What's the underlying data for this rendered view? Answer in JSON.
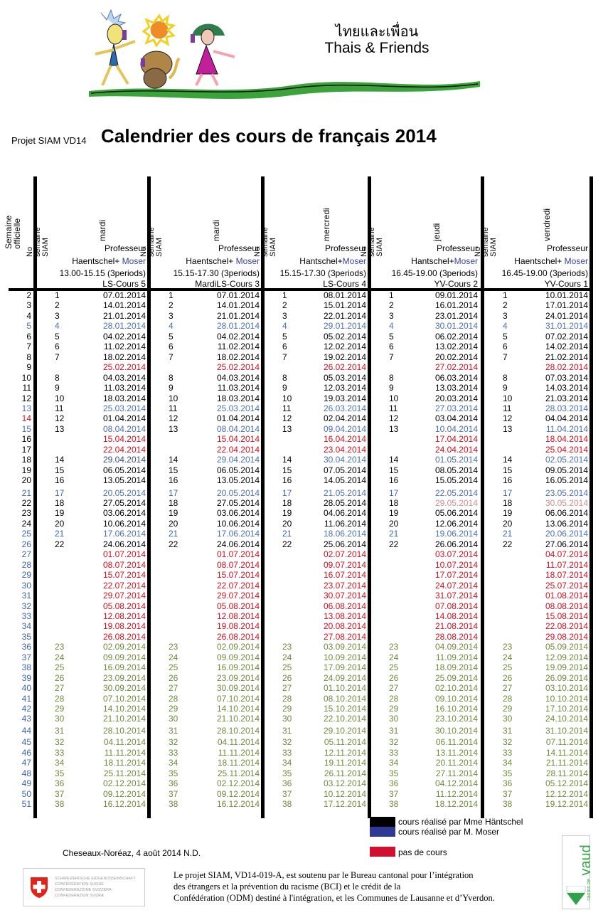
{
  "brand": {
    "thai": "ไทยและเพื่อน",
    "english": "Thais & Friends"
  },
  "header": {
    "project_label": "Projet SIAM VD14",
    "title": "Calendrier des cours de français 2014"
  },
  "table": {
    "week_header": "Semaine officielle",
    "siam_header": "No semaine SIAM",
    "columns": [
      {
        "day": "mardi",
        "role": "Professeur",
        "teacher_a": "Haentschel+",
        "teacher_b": "Moser",
        "time": "13.00-15.15 (3periods)",
        "course": "LS-Cours 5"
      },
      {
        "day": "mardi",
        "role": "Professeur",
        "teacher_a": "Haentschel+",
        "teacher_b": "Moser",
        "time": "15.15-17.30 (3periods)",
        "course": "MardiLS-Cours 3"
      },
      {
        "day": "mercredi",
        "role": "Professeur",
        "teacher_a": "Hantschel+",
        "teacher_b": "Moser",
        "time": "15.15-17.30 (3periods)",
        "course": "LS-Cours 4"
      },
      {
        "day": "jeudi",
        "role": "Professeur",
        "teacher_a": "Hantschel+",
        "teacher_b": "Moser",
        "time": "16.45-19.00 (3periods)",
        "course": "YV-Cours 2"
      },
      {
        "day": "vendredi",
        "role": "Professeur",
        "teacher_a": "Haentschel+",
        "teacher_b": "Moser",
        "time": "16.45-19.00 (3periods)",
        "course": "YV-Cours 1"
      }
    ],
    "rows": [
      {
        "week": "2",
        "wc": "black",
        "siam": "1",
        "c": "black",
        "dates": [
          "07.01.2014",
          "07.01.2014",
          "08.01.2014",
          "09.01.2014",
          "10.01.2014"
        ]
      },
      {
        "week": "3",
        "wc": "black",
        "siam": "2",
        "c": "black",
        "dates": [
          "14.01.2014",
          "14.01.2014",
          "15.01.2014",
          "16.01.2014",
          "17.01.2014"
        ]
      },
      {
        "week": "4",
        "wc": "black",
        "siam": "3",
        "c": "black",
        "dates": [
          "21.01.2014",
          "21.01.2014",
          "22.01.2014",
          "23.01.2014",
          "24.01.2014"
        ]
      },
      {
        "week": "5",
        "wc": "blue",
        "siam": "4",
        "c": "blue",
        "dates": [
          "28.01.2014",
          "28.01.2014",
          "29.01.2014",
          "30.01.2014",
          "31.01.2014"
        ]
      },
      {
        "week": "6",
        "wc": "black",
        "siam": "5",
        "c": "black",
        "dates": [
          "04.02.2014",
          "04.02.2014",
          "05.02.2014",
          "06.02.2014",
          "07.02.2014"
        ]
      },
      {
        "week": "7",
        "wc": "black",
        "siam": "6",
        "c": "black",
        "dates": [
          "11.02.2014",
          "11.02.2014",
          "12.02.2014",
          "13.02.2014",
          "14.02.2014"
        ]
      },
      {
        "week": "8",
        "wc": "black",
        "siam": "7",
        "c": "black",
        "dates": [
          "18.02.2014",
          "18.02.2014",
          "19.02.2014",
          "20.02.2014",
          "21.02.2014"
        ]
      },
      {
        "week": "9",
        "wc": "black",
        "siam": "",
        "c": "red",
        "dates": [
          "25.02.2014",
          "25.02.2014",
          "26.02.2014",
          "27.02.2014",
          "28.02.2014"
        ]
      },
      {
        "week": "10",
        "wc": "black",
        "siam": "8",
        "c": "black",
        "dates": [
          "04.03.2014",
          "04.03.2014",
          "05.03.2014",
          "06.03.2014",
          "07.03.2014"
        ]
      },
      {
        "week": "11",
        "wc": "black",
        "siam": "9",
        "c": "black",
        "dates": [
          "11.03.2014",
          "11.03.2014",
          "12.03.2014",
          "13.03.2014",
          "14.03.2014"
        ]
      },
      {
        "week": "12",
        "wc": "black",
        "siam": "10",
        "c": "black",
        "dates": [
          "18.03.2014",
          "18.03.2014",
          "19.03.2014",
          "20.03.2014",
          "21.03.2014"
        ]
      },
      {
        "week": "13",
        "wc": "blue",
        "siam": "11",
        "sc": "black",
        "c": "blue",
        "dates": [
          "25.03.2014",
          "25.03.2014",
          "26.03.2014",
          "27.03.2014",
          "28.03.2014"
        ]
      },
      {
        "week": "14",
        "wc": "red",
        "siam": "12",
        "c": "black",
        "dates": [
          "01.04.2014",
          "01.04.2014",
          "02.04.2014",
          "03.04.2014",
          "04.04.2014"
        ]
      },
      {
        "week": "15",
        "wc": "blue",
        "siam": "13",
        "sc": "black",
        "c": "blue",
        "dates": [
          "08.04.2014",
          "08.04.2014",
          "09.04.2014",
          "10.04.2014",
          "11.04.2014"
        ]
      },
      {
        "week": "16",
        "wc": "black",
        "siam": "",
        "c": "red",
        "dates": [
          "15.04.2014",
          "15.04.2014",
          "16.04.2014",
          "17.04.2014",
          "18.04.2014"
        ]
      },
      {
        "week": "17",
        "wc": "black",
        "siam": "",
        "c": "red",
        "dates": [
          "22.04.2014",
          "22.04.2014",
          "23.04.2014",
          "24.04.2014",
          "25.04.2014"
        ]
      },
      {
        "week": "18",
        "wc": "black",
        "siam": "14",
        "sc": "black",
        "c": "blue",
        "first": "dblue",
        "dates": [
          "29.04.2014",
          "29.04.2014",
          "30.04.2014",
          "01.05.2014",
          "02.05.2014"
        ]
      },
      {
        "week": "19",
        "wc": "black",
        "siam": "15",
        "c": "black",
        "dates": [
          "06.05.2014",
          "06.05.2014",
          "07.05.2014",
          "08.05.2014",
          "09.05.2014"
        ]
      },
      {
        "week": "20",
        "wc": "black",
        "siam": "16",
        "c": "black",
        "dates": [
          "13.05.2014",
          "13.05.2014",
          "14.05.2014",
          "15.05.2014",
          "16.05.2014"
        ]
      },
      {
        "week": "21",
        "wc": "wkblue",
        "siam": "17",
        "sc": "wkblue",
        "c": "blue",
        "dates": [
          "20.05.2014",
          "20.05.2014",
          "21.05.2014",
          "22.05.2014",
          "23.05.2014"
        ]
      },
      {
        "week": "22",
        "wc": "black",
        "siam": "18",
        "c": "black",
        "pinkLast": true,
        "dates": [
          "27.05.2014",
          "27.05.2014",
          "28.05.2014",
          "29.05.2014",
          "30.05.2014"
        ]
      },
      {
        "week": "23",
        "wc": "black",
        "siam": "19",
        "c": "black",
        "dates": [
          "03.06.2014",
          "03.06.2014",
          "04.06.2014",
          "05.06.2014",
          "06.06.2014"
        ]
      },
      {
        "week": "24",
        "wc": "black",
        "siam": "20",
        "c": "black",
        "dates": [
          "10.06.2014",
          "10.06.2014",
          "11.06.2014",
          "12.06.2014",
          "13.06.2014"
        ]
      },
      {
        "week": "25",
        "wc": "wkblue",
        "siam": "21",
        "sc": "wkblue",
        "c": "blue",
        "dates": [
          "17.06.2014",
          "17.06.2014",
          "18.06.2014",
          "19.06.2014",
          "20.06.2014"
        ]
      },
      {
        "week": "26",
        "wc": "wkblue",
        "siam": "22",
        "sc": "black",
        "c": "black",
        "dates": [
          "24.06.2014",
          "24.06.2014",
          "25.06.2014",
          "26.06.2014",
          "27.06.2014"
        ]
      },
      {
        "week": "27",
        "wc": "wkblue",
        "siam": "",
        "c": "red",
        "dates": [
          "01.07.2014",
          "01.07.2014",
          "02.07.2014",
          "03.07.2014",
          "04.07.2014"
        ]
      },
      {
        "week": "28",
        "wc": "wkblue",
        "siam": "",
        "c": "red",
        "dates": [
          "08.07.2014",
          "08.07.2014",
          "09.07.2014",
          "10.07.2014",
          "11.07.2014"
        ]
      },
      {
        "week": "29",
        "wc": "wkblue",
        "siam": "",
        "c": "red",
        "dates": [
          "15.07.2014",
          "15.07.2014",
          "16.07.2014",
          "17.07.2014",
          "18.07.2014"
        ]
      },
      {
        "week": "30",
        "wc": "wkblue",
        "siam": "",
        "c": "red",
        "dates": [
          "22.07.2014",
          "22.07.2014",
          "23.07.2014",
          "24.07.2014",
          "25.07.2014"
        ]
      },
      {
        "week": "31",
        "wc": "wkblue",
        "siam": "",
        "c": "red",
        "dates": [
          "29.07.2014",
          "29.07.2014",
          "30.07.2014",
          "31.07.2014",
          "01.08.2014"
        ]
      },
      {
        "week": "32",
        "wc": "wkblue",
        "siam": "",
        "c": "red",
        "dates": [
          "05.08.2014",
          "05.08.2014",
          "06.08.2014",
          "07.08.2014",
          "08.08.2014"
        ]
      },
      {
        "week": "33",
        "wc": "wkblue",
        "siam": "",
        "c": "red",
        "dates": [
          "12.08.2014",
          "12.08.2014",
          "13.08.2014",
          "14.08.2014",
          "15.08.2014"
        ]
      },
      {
        "week": "34",
        "wc": "wkblue",
        "siam": "",
        "c": "red",
        "dates": [
          "19.08.2014",
          "19.08.2014",
          "20.08.2014",
          "21.08.2014",
          "22.08.2014"
        ]
      },
      {
        "week": "35",
        "wc": "wkblue",
        "siam": "",
        "c": "red",
        "dates": [
          "26.08.2014",
          "26.08.2014",
          "27.08.2014",
          "28.08.2014",
          "29.08.2014"
        ]
      },
      {
        "week": "36",
        "wc": "wkblue",
        "siam": "23",
        "c": "green",
        "dates": [
          "02.09.2014",
          "02.09.2014",
          "03.09.2014",
          "04.09.2014",
          "05.09.2014"
        ]
      },
      {
        "week": "37",
        "wc": "wkblue",
        "siam": "24",
        "c": "green",
        "dates": [
          "09.09.2014",
          "09.09.2014",
          "10.09.2014",
          "11.09.2014",
          "12.09.2014"
        ]
      },
      {
        "week": "38",
        "wc": "wkblue",
        "siam": "25",
        "c": "green",
        "dates": [
          "16.09.2014",
          "16.09.2014",
          "17.09.2014",
          "18.09.2014",
          "19.09.2014"
        ]
      },
      {
        "week": "39",
        "wc": "wkblue",
        "siam": "26",
        "c": "green",
        "dates": [
          "23.09.2014",
          "23.09.2014",
          "24.09.2014",
          "25.09.2014",
          "26.09.2014"
        ]
      },
      {
        "week": "40",
        "wc": "wkblue",
        "siam": "27",
        "c": "green",
        "dates": [
          "30.09.2014",
          "30.09.2014",
          "01.10.2014",
          "02.10.2014",
          "03.10.2014"
        ]
      },
      {
        "week": "41",
        "wc": "wkblue",
        "siam": "28",
        "c": "green",
        "dates": [
          "07.10.2014",
          "07.10.2014",
          "08.10.2014",
          "09.10.2014",
          "10.10.2014"
        ]
      },
      {
        "week": "42",
        "wc": "wkblue",
        "siam": "29",
        "c": "green",
        "dates": [
          "14.10.2014",
          "14.10.2014",
          "15.10.2014",
          "16.10.2014",
          "17.10.2014"
        ]
      },
      {
        "week": "43",
        "wc": "wkblue",
        "siam": "30",
        "c": "green",
        "dates": [
          "21.10.2014",
          "21.10.2014",
          "22.10.2014",
          "23.10.2014",
          "24.10.2014"
        ]
      },
      {
        "week": "44",
        "wc": "wkblue",
        "siam": "31",
        "c": "green",
        "dates": [
          "28.10.2014",
          "28.10.2014",
          "29.10.2014",
          "30.10.2014",
          "31.10.2014"
        ]
      },
      {
        "week": "45",
        "wc": "wkblue",
        "siam": "32",
        "c": "green",
        "dates": [
          "04.11.2014",
          "04.11.2014",
          "05.11.2014",
          "06.11.2014",
          "07.11.2014"
        ]
      },
      {
        "week": "46",
        "wc": "wkblue",
        "siam": "33",
        "c": "green",
        "dates": [
          "11.11.2014",
          "11.11.2014",
          "12.11.2014",
          "13.11.2014",
          "14.11.2014"
        ]
      },
      {
        "week": "47",
        "wc": "wkblue",
        "siam": "34",
        "c": "green",
        "dates": [
          "18.11.2014",
          "18.11.2014",
          "19.11.2014",
          "20.11.2014",
          "21.11.2014"
        ]
      },
      {
        "week": "48",
        "wc": "wkblue",
        "siam": "35",
        "c": "green",
        "dates": [
          "25.11.2014",
          "25.11.2014",
          "26.11.2014",
          "27.11.2014",
          "28.11.2014"
        ]
      },
      {
        "week": "49",
        "wc": "wkblue",
        "siam": "36",
        "c": "green",
        "dates": [
          "02.12.2014",
          "02.12.2014",
          "03.12.2014",
          "04.12.2014",
          "05.12.2014"
        ]
      },
      {
        "week": "50",
        "wc": "wkblue",
        "siam": "37",
        "c": "green",
        "dates": [
          "09.12.2014",
          "09.12.2014",
          "10.12.2014",
          "11.12.2014",
          "12.12.2014"
        ]
      },
      {
        "week": "51",
        "wc": "wkblue",
        "siam": "38",
        "c": "green",
        "dates": [
          "16.12.2014",
          "16.12.2014",
          "17.12.2014",
          "18.12.2014",
          "19.12.2014"
        ]
      }
    ]
  },
  "legend": [
    {
      "label": "cours réalisé par Mme Häntschel",
      "color": "#000000"
    },
    {
      "label": "cours réalisé par M. Moser",
      "color": "#2e3a94"
    },
    {
      "label": "pas de cours",
      "color": "#d0102e"
    }
  ],
  "footer": {
    "place_date": "Cheseaux-Noréaz, 4 août 2014 N.D.",
    "funding_lines": [
      "Le projet SIAM, VD14-019-A, est soutenu par le Bureau cantonal pour l’intégration",
      "des étrangers et la prévention du racisme (BCI)  et le crédit  de la",
      "Confédération  (ODM) destiné à l'intégration, et les Communes de Lausanne et d’Yverdon."
    ],
    "swiss_logo_lines": [
      "SCHWEIZERISCHE EIDGENOSSENSCHAFT",
      "CONFÉDÉRATION SUISSE",
      "CONFEDERAZIONE SVIZZERA",
      "CONFEDERAZIUN SVIZRA"
    ],
    "vaud_logo": {
      "small": "canton de",
      "big": "vaud"
    }
  }
}
